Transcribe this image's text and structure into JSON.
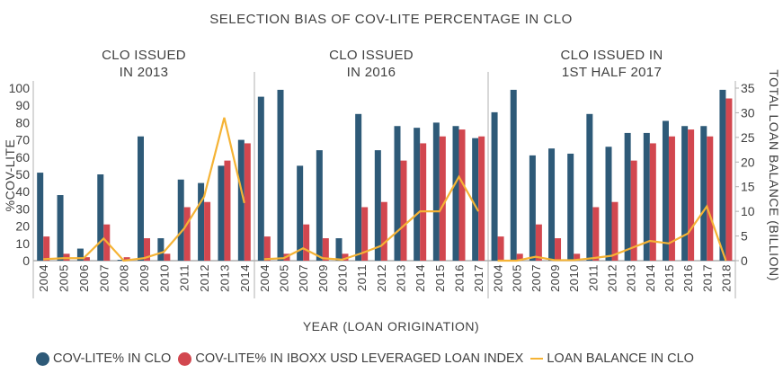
{
  "chart_data": {
    "type": "bar",
    "title": "SELECTION BIAS OF COV-LITE PERCENTAGE IN CLO",
    "xlabel": "YEAR (LOAN ORIGINATION)",
    "ylabel": "%COV-LITE",
    "y2label": "TOTAL LOAN BALANCE (BILLION)",
    "ylim": [
      0,
      100
    ],
    "y2lim": [
      0,
      35
    ],
    "yticks": [
      0,
      10,
      20,
      30,
      40,
      50,
      60,
      70,
      80,
      90,
      100
    ],
    "y2ticks": [
      0,
      5,
      10,
      15,
      20,
      25,
      30,
      35
    ],
    "grid": false,
    "legend_position": "bottom",
    "colors": {
      "clo": "#2e5a78",
      "iboxx": "#d2474f",
      "balance": "#f5b335",
      "text": "#404040",
      "axis": "#b0b0b0"
    },
    "legend": [
      {
        "name": "COV-LITE% IN CLO",
        "type": "dot",
        "color": "#2e5a78"
      },
      {
        "name": "COV-LITE% IN IBOXX USD LEVERAGED LOAN INDEX",
        "type": "dot",
        "color": "#d2474f"
      },
      {
        "name": "LOAN BALANCE IN CLO",
        "type": "line",
        "color": "#f5b335"
      }
    ],
    "panels": [
      {
        "title_line1": "CLO ISSUED",
        "title_line2": "IN 2013",
        "categories": [
          "2004",
          "2005",
          "2006",
          "2007",
          "2008",
          "2009",
          "2010",
          "2011",
          "2012",
          "2013",
          "2014"
        ],
        "series": [
          {
            "name": "COV-LITE% IN CLO",
            "type": "bar",
            "axis": "left",
            "values": [
              51,
              38,
              7,
              50,
              0.5,
              72,
              13,
              47,
              45,
              55,
              70
            ]
          },
          {
            "name": "COV-LITE% IN IBOXX USD LEVERAGED LOAN INDEX",
            "type": "bar",
            "axis": "left",
            "values": [
              14,
              4,
              2,
              21,
              2,
              13,
              4,
              31,
              34,
              58,
              68
            ]
          },
          {
            "name": "LOAN BALANCE IN CLO",
            "type": "line",
            "axis": "right",
            "values": [
              0.3,
              0.5,
              0.5,
              4.5,
              0,
              0.5,
              1.8,
              6.5,
              13,
              29,
              11.7
            ]
          }
        ]
      },
      {
        "title_line1": "CLO ISSUED",
        "title_line2": "IN 2016",
        "categories": [
          "2004",
          "2005",
          "2007",
          "2009",
          "2010",
          "2011",
          "2012",
          "2013",
          "2014",
          "2015",
          "2016",
          "2017"
        ],
        "series": [
          {
            "name": "COV-LITE% IN CLO",
            "type": "bar",
            "axis": "left",
            "values": [
              95,
              99,
              55,
              64,
              13,
              85,
              64,
              78,
              77,
              80,
              78,
              71
            ]
          },
          {
            "name": "COV-LITE% IN IBOXX USD LEVERAGED LOAN INDEX",
            "type": "bar",
            "axis": "left",
            "values": [
              14,
              4,
              21,
              13,
              4,
              31,
              34,
              58,
              68,
              72,
              76,
              72
            ]
          },
          {
            "name": "LOAN BALANCE IN CLO",
            "type": "line",
            "axis": "right",
            "values": [
              0.3,
              0.5,
              2.5,
              0.5,
              0.2,
              1.5,
              3,
              6.5,
              10,
              10,
              17,
              10
            ]
          }
        ]
      },
      {
        "title_line1": "CLO ISSUED IN",
        "title_line2": "1ST HALF 2017",
        "categories": [
          "2004",
          "2005",
          "2007",
          "2009",
          "2010",
          "2011",
          "2012",
          "2013",
          "2014",
          "2015",
          "2016",
          "2017",
          "2018"
        ],
        "series": [
          {
            "name": "COV-LITE% IN CLO",
            "type": "bar",
            "axis": "left",
            "values": [
              86,
              99,
              61,
              65,
              62,
              85,
              66,
              74,
              74,
              81,
              78,
              78,
              99
            ]
          },
          {
            "name": "COV-LITE% IN IBOXX USD LEVERAGED LOAN INDEX",
            "type": "bar",
            "axis": "left",
            "values": [
              14,
              4,
              21,
              13,
              4,
              31,
              34,
              58,
              68,
              72,
              76,
              72,
              94
            ]
          },
          {
            "name": "LOAN BALANCE IN CLO",
            "type": "line",
            "axis": "right",
            "values": [
              0,
              0,
              0.8,
              0.1,
              0.1,
              0.5,
              1,
              2.5,
              4,
              3.5,
              5.5,
              11,
              0
            ]
          }
        ]
      }
    ]
  }
}
